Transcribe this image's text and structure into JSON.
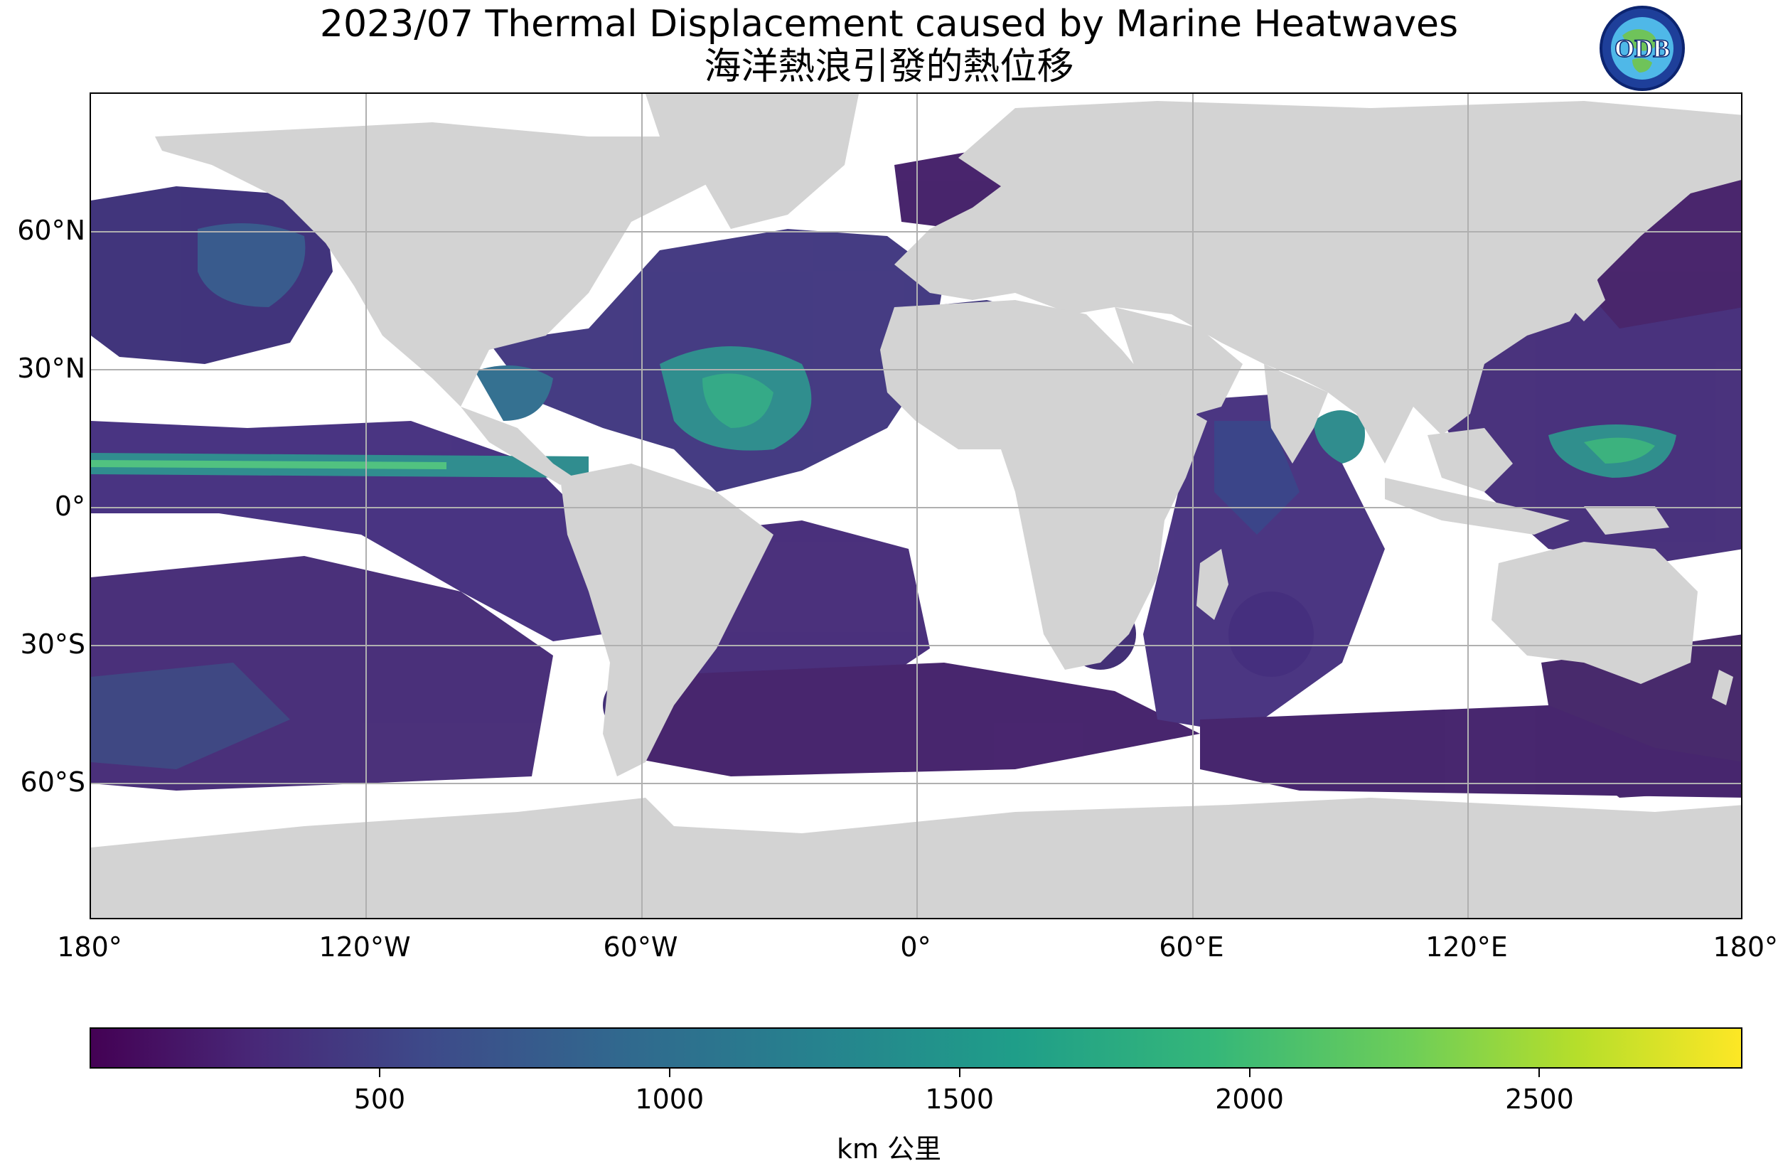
{
  "title": "2023/07 Thermal Displacement caused by Marine Heatwaves",
  "subtitle": "海洋熱浪引發的熱位移",
  "logo_text": "ODB",
  "map": {
    "projection": "equirectangular",
    "lat_ticks": [
      "60°N",
      "30°N",
      "0°",
      "30°S",
      "60°S"
    ],
    "lon_ticks": [
      "180°",
      "120°W",
      "60°W",
      "0°",
      "60°E",
      "120°E",
      "180°"
    ],
    "grid": true,
    "land_color": "#d3d3d3",
    "ocean_no_data_color": "#ffffff"
  },
  "colorbar": {
    "colormap": "viridis",
    "range": [
      0,
      2850
    ],
    "ticks": [
      {
        "value": 500,
        "label": "500"
      },
      {
        "value": 1000,
        "label": "1000"
      },
      {
        "value": 1500,
        "label": "1500"
      },
      {
        "value": 2000,
        "label": "2000"
      },
      {
        "value": 2500,
        "label": "2500"
      }
    ],
    "unit_label": "km 公里"
  },
  "colors": {
    "low": "#440154",
    "mid": "#31688e",
    "high": "#35b779",
    "max": "#fde725"
  }
}
